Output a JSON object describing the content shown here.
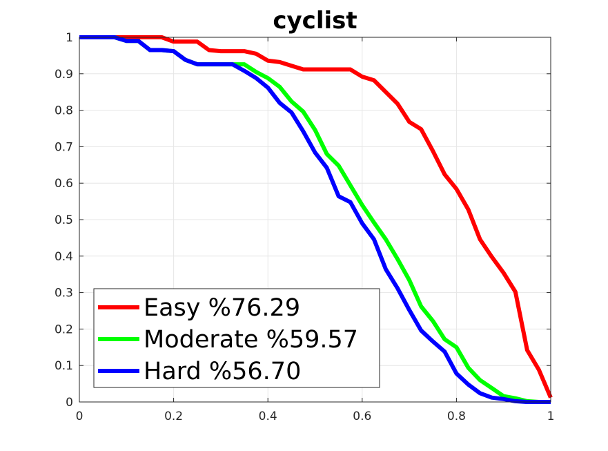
{
  "chart_data": {
    "type": "line",
    "title": "cyclist",
    "xlabel": "",
    "ylabel": "",
    "xlim": [
      0,
      1
    ],
    "ylim": [
      0,
      1
    ],
    "grid": true,
    "legend_position": "bottom-left",
    "x_ticks": [
      "0",
      "0.2",
      "0.4",
      "0.6",
      "0.8",
      "1"
    ],
    "y_ticks": [
      "0",
      "0.1",
      "0.2",
      "0.3",
      "0.4",
      "0.5",
      "0.6",
      "0.7",
      "0.8",
      "0.9",
      "1"
    ],
    "series": [
      {
        "name": "Easy %76.29",
        "color": "#ff0000",
        "x": [
          0,
          0.05,
          0.1,
          0.15,
          0.175,
          0.2,
          0.225,
          0.25,
          0.275,
          0.3,
          0.325,
          0.35,
          0.375,
          0.4,
          0.425,
          0.45,
          0.475,
          0.5,
          0.525,
          0.55,
          0.575,
          0.6,
          0.625,
          0.65,
          0.675,
          0.7,
          0.725,
          0.75,
          0.775,
          0.8,
          0.825,
          0.85,
          0.875,
          0.9,
          0.925,
          0.95,
          0.975,
          1
        ],
        "y": [
          1,
          1,
          1,
          1,
          1,
          0.988,
          0.988,
          0.988,
          0.965,
          0.962,
          0.962,
          0.962,
          0.955,
          0.936,
          0.932,
          0.922,
          0.912,
          0.912,
          0.912,
          0.912,
          0.912,
          0.892,
          0.882,
          0.85,
          0.818,
          0.768,
          0.748,
          0.688,
          0.624,
          0.584,
          0.528,
          0.446,
          0.398,
          0.354,
          0.302,
          0.142,
          0.088,
          0.012
        ]
      },
      {
        "name": "Moderate %59.57",
        "color": "#00ff00",
        "x": [
          0,
          0.05,
          0.075,
          0.1,
          0.125,
          0.15,
          0.175,
          0.2,
          0.225,
          0.25,
          0.275,
          0.3,
          0.325,
          0.35,
          0.375,
          0.4,
          0.425,
          0.45,
          0.475,
          0.5,
          0.525,
          0.55,
          0.575,
          0.6,
          0.625,
          0.65,
          0.675,
          0.7,
          0.725,
          0.75,
          0.775,
          0.8,
          0.825,
          0.85,
          0.875,
          0.9,
          0.925,
          0.95,
          0.975,
          1
        ],
        "y": [
          1,
          1,
          1,
          0.99,
          0.99,
          0.965,
          0.965,
          0.962,
          0.938,
          0.926,
          0.926,
          0.926,
          0.926,
          0.926,
          0.905,
          0.888,
          0.864,
          0.824,
          0.796,
          0.746,
          0.68,
          0.648,
          0.594,
          0.54,
          0.492,
          0.446,
          0.392,
          0.334,
          0.262,
          0.222,
          0.172,
          0.15,
          0.094,
          0.06,
          0.038,
          0.016,
          0.01,
          0.002,
          0,
          0
        ]
      },
      {
        "name": "Hard %56.70",
        "color": "#0000ff",
        "x": [
          0,
          0.05,
          0.075,
          0.1,
          0.125,
          0.15,
          0.175,
          0.2,
          0.225,
          0.25,
          0.275,
          0.3,
          0.325,
          0.35,
          0.375,
          0.4,
          0.425,
          0.45,
          0.475,
          0.5,
          0.525,
          0.55,
          0.575,
          0.6,
          0.625,
          0.65,
          0.675,
          0.7,
          0.725,
          0.75,
          0.775,
          0.8,
          0.825,
          0.85,
          0.875,
          0.9,
          0.925,
          0.95,
          0.975,
          1
        ],
        "y": [
          1,
          1,
          1,
          0.99,
          0.99,
          0.965,
          0.965,
          0.962,
          0.938,
          0.926,
          0.926,
          0.926,
          0.926,
          0.908,
          0.888,
          0.862,
          0.82,
          0.794,
          0.742,
          0.684,
          0.642,
          0.564,
          0.548,
          0.49,
          0.446,
          0.364,
          0.312,
          0.252,
          0.196,
          0.166,
          0.138,
          0.078,
          0.048,
          0.024,
          0.012,
          0.008,
          0.002,
          0,
          0,
          0
        ]
      }
    ]
  }
}
